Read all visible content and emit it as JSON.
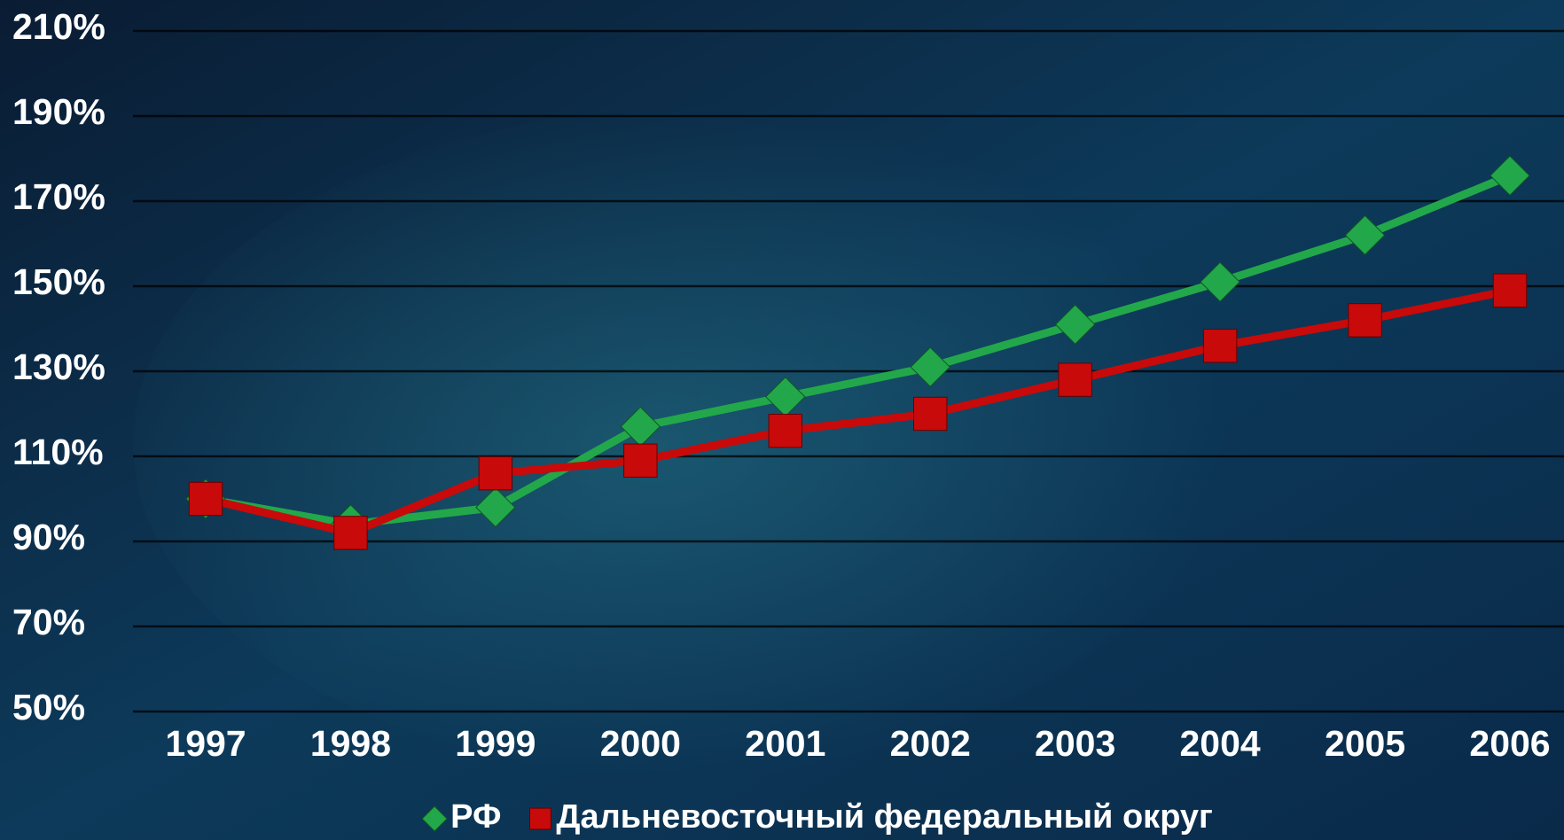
{
  "chart_data": {
    "type": "line",
    "categories": [
      "1997",
      "1998",
      "1999",
      "2000",
      "2001",
      "2002",
      "2003",
      "2004",
      "2005",
      "2006"
    ],
    "series": [
      {
        "name": "РФ",
        "color": "#22a84a",
        "marker": "diamond",
        "values": [
          100,
          94,
          98,
          117,
          124,
          131,
          141,
          151,
          162,
          176
        ]
      },
      {
        "name": "Дальневосточный федеральный округ",
        "color": "#c80a0a",
        "marker": "square",
        "values": [
          100,
          92,
          106,
          109,
          116,
          120,
          128,
          136,
          142,
          149
        ]
      }
    ],
    "ylim": [
      50,
      210
    ],
    "yticks": [
      {
        "value": 50,
        "label": "50%"
      },
      {
        "value": 70,
        "label": "70%"
      },
      {
        "value": 90,
        "label": "90%"
      },
      {
        "value": 110,
        "label": "110%"
      },
      {
        "value": 130,
        "label": "130%"
      },
      {
        "value": 150,
        "label": "150%"
      },
      {
        "value": 170,
        "label": "170%"
      },
      {
        "value": 190,
        "label": "190%"
      },
      {
        "value": 210,
        "label": "210%"
      }
    ],
    "grid": true,
    "legend": "bottom"
  }
}
